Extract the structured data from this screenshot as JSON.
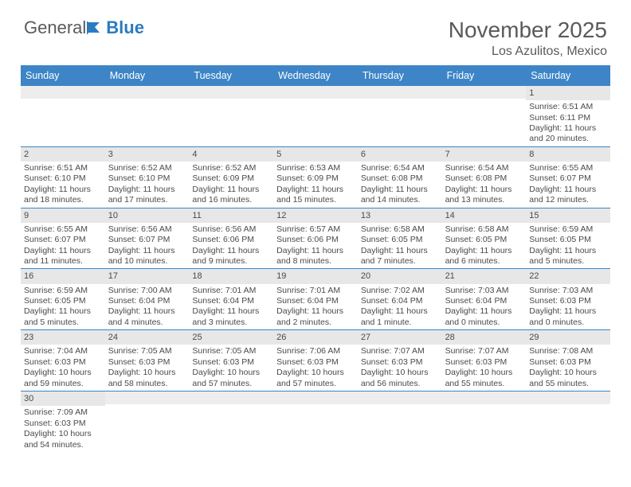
{
  "brand": {
    "part1": "General",
    "part2": "Blue"
  },
  "title": {
    "month": "November 2025",
    "location": "Los Azulitos, Mexico"
  },
  "colors": {
    "header_bg": "#3d85c6",
    "header_text": "#ffffff",
    "daynum_bg": "#e7e7e7",
    "text": "#4a4a4a",
    "rule": "#3d85c6",
    "brand_gray": "#5a5a5a",
    "brand_blue": "#2b7bbf"
  },
  "dayHeaders": [
    "Sunday",
    "Monday",
    "Tuesday",
    "Wednesday",
    "Thursday",
    "Friday",
    "Saturday"
  ],
  "weeks": [
    [
      {
        "n": "",
        "lines": []
      },
      {
        "n": "",
        "lines": []
      },
      {
        "n": "",
        "lines": []
      },
      {
        "n": "",
        "lines": []
      },
      {
        "n": "",
        "lines": []
      },
      {
        "n": "",
        "lines": []
      },
      {
        "n": "1",
        "lines": [
          "Sunrise: 6:51 AM",
          "Sunset: 6:11 PM",
          "Daylight: 11 hours",
          "and 20 minutes."
        ]
      }
    ],
    [
      {
        "n": "2",
        "lines": [
          "Sunrise: 6:51 AM",
          "Sunset: 6:10 PM",
          "Daylight: 11 hours",
          "and 18 minutes."
        ]
      },
      {
        "n": "3",
        "lines": [
          "Sunrise: 6:52 AM",
          "Sunset: 6:10 PM",
          "Daylight: 11 hours",
          "and 17 minutes."
        ]
      },
      {
        "n": "4",
        "lines": [
          "Sunrise: 6:52 AM",
          "Sunset: 6:09 PM",
          "Daylight: 11 hours",
          "and 16 minutes."
        ]
      },
      {
        "n": "5",
        "lines": [
          "Sunrise: 6:53 AM",
          "Sunset: 6:09 PM",
          "Daylight: 11 hours",
          "and 15 minutes."
        ]
      },
      {
        "n": "6",
        "lines": [
          "Sunrise: 6:54 AM",
          "Sunset: 6:08 PM",
          "Daylight: 11 hours",
          "and 14 minutes."
        ]
      },
      {
        "n": "7",
        "lines": [
          "Sunrise: 6:54 AM",
          "Sunset: 6:08 PM",
          "Daylight: 11 hours",
          "and 13 minutes."
        ]
      },
      {
        "n": "8",
        "lines": [
          "Sunrise: 6:55 AM",
          "Sunset: 6:07 PM",
          "Daylight: 11 hours",
          "and 12 minutes."
        ]
      }
    ],
    [
      {
        "n": "9",
        "lines": [
          "Sunrise: 6:55 AM",
          "Sunset: 6:07 PM",
          "Daylight: 11 hours",
          "and 11 minutes."
        ]
      },
      {
        "n": "10",
        "lines": [
          "Sunrise: 6:56 AM",
          "Sunset: 6:07 PM",
          "Daylight: 11 hours",
          "and 10 minutes."
        ]
      },
      {
        "n": "11",
        "lines": [
          "Sunrise: 6:56 AM",
          "Sunset: 6:06 PM",
          "Daylight: 11 hours",
          "and 9 minutes."
        ]
      },
      {
        "n": "12",
        "lines": [
          "Sunrise: 6:57 AM",
          "Sunset: 6:06 PM",
          "Daylight: 11 hours",
          "and 8 minutes."
        ]
      },
      {
        "n": "13",
        "lines": [
          "Sunrise: 6:58 AM",
          "Sunset: 6:05 PM",
          "Daylight: 11 hours",
          "and 7 minutes."
        ]
      },
      {
        "n": "14",
        "lines": [
          "Sunrise: 6:58 AM",
          "Sunset: 6:05 PM",
          "Daylight: 11 hours",
          "and 6 minutes."
        ]
      },
      {
        "n": "15",
        "lines": [
          "Sunrise: 6:59 AM",
          "Sunset: 6:05 PM",
          "Daylight: 11 hours",
          "and 5 minutes."
        ]
      }
    ],
    [
      {
        "n": "16",
        "lines": [
          "Sunrise: 6:59 AM",
          "Sunset: 6:05 PM",
          "Daylight: 11 hours",
          "and 5 minutes."
        ]
      },
      {
        "n": "17",
        "lines": [
          "Sunrise: 7:00 AM",
          "Sunset: 6:04 PM",
          "Daylight: 11 hours",
          "and 4 minutes."
        ]
      },
      {
        "n": "18",
        "lines": [
          "Sunrise: 7:01 AM",
          "Sunset: 6:04 PM",
          "Daylight: 11 hours",
          "and 3 minutes."
        ]
      },
      {
        "n": "19",
        "lines": [
          "Sunrise: 7:01 AM",
          "Sunset: 6:04 PM",
          "Daylight: 11 hours",
          "and 2 minutes."
        ]
      },
      {
        "n": "20",
        "lines": [
          "Sunrise: 7:02 AM",
          "Sunset: 6:04 PM",
          "Daylight: 11 hours",
          "and 1 minute."
        ]
      },
      {
        "n": "21",
        "lines": [
          "Sunrise: 7:03 AM",
          "Sunset: 6:04 PM",
          "Daylight: 11 hours",
          "and 0 minutes."
        ]
      },
      {
        "n": "22",
        "lines": [
          "Sunrise: 7:03 AM",
          "Sunset: 6:03 PM",
          "Daylight: 11 hours",
          "and 0 minutes."
        ]
      }
    ],
    [
      {
        "n": "23",
        "lines": [
          "Sunrise: 7:04 AM",
          "Sunset: 6:03 PM",
          "Daylight: 10 hours",
          "and 59 minutes."
        ]
      },
      {
        "n": "24",
        "lines": [
          "Sunrise: 7:05 AM",
          "Sunset: 6:03 PM",
          "Daylight: 10 hours",
          "and 58 minutes."
        ]
      },
      {
        "n": "25",
        "lines": [
          "Sunrise: 7:05 AM",
          "Sunset: 6:03 PM",
          "Daylight: 10 hours",
          "and 57 minutes."
        ]
      },
      {
        "n": "26",
        "lines": [
          "Sunrise: 7:06 AM",
          "Sunset: 6:03 PM",
          "Daylight: 10 hours",
          "and 57 minutes."
        ]
      },
      {
        "n": "27",
        "lines": [
          "Sunrise: 7:07 AM",
          "Sunset: 6:03 PM",
          "Daylight: 10 hours",
          "and 56 minutes."
        ]
      },
      {
        "n": "28",
        "lines": [
          "Sunrise: 7:07 AM",
          "Sunset: 6:03 PM",
          "Daylight: 10 hours",
          "and 55 minutes."
        ]
      },
      {
        "n": "29",
        "lines": [
          "Sunrise: 7:08 AM",
          "Sunset: 6:03 PM",
          "Daylight: 10 hours",
          "and 55 minutes."
        ]
      }
    ],
    [
      {
        "n": "30",
        "lines": [
          "Sunrise: 7:09 AM",
          "Sunset: 6:03 PM",
          "Daylight: 10 hours",
          "and 54 minutes."
        ]
      },
      {
        "n": "",
        "lines": []
      },
      {
        "n": "",
        "lines": []
      },
      {
        "n": "",
        "lines": []
      },
      {
        "n": "",
        "lines": []
      },
      {
        "n": "",
        "lines": []
      },
      {
        "n": "",
        "lines": []
      }
    ]
  ]
}
